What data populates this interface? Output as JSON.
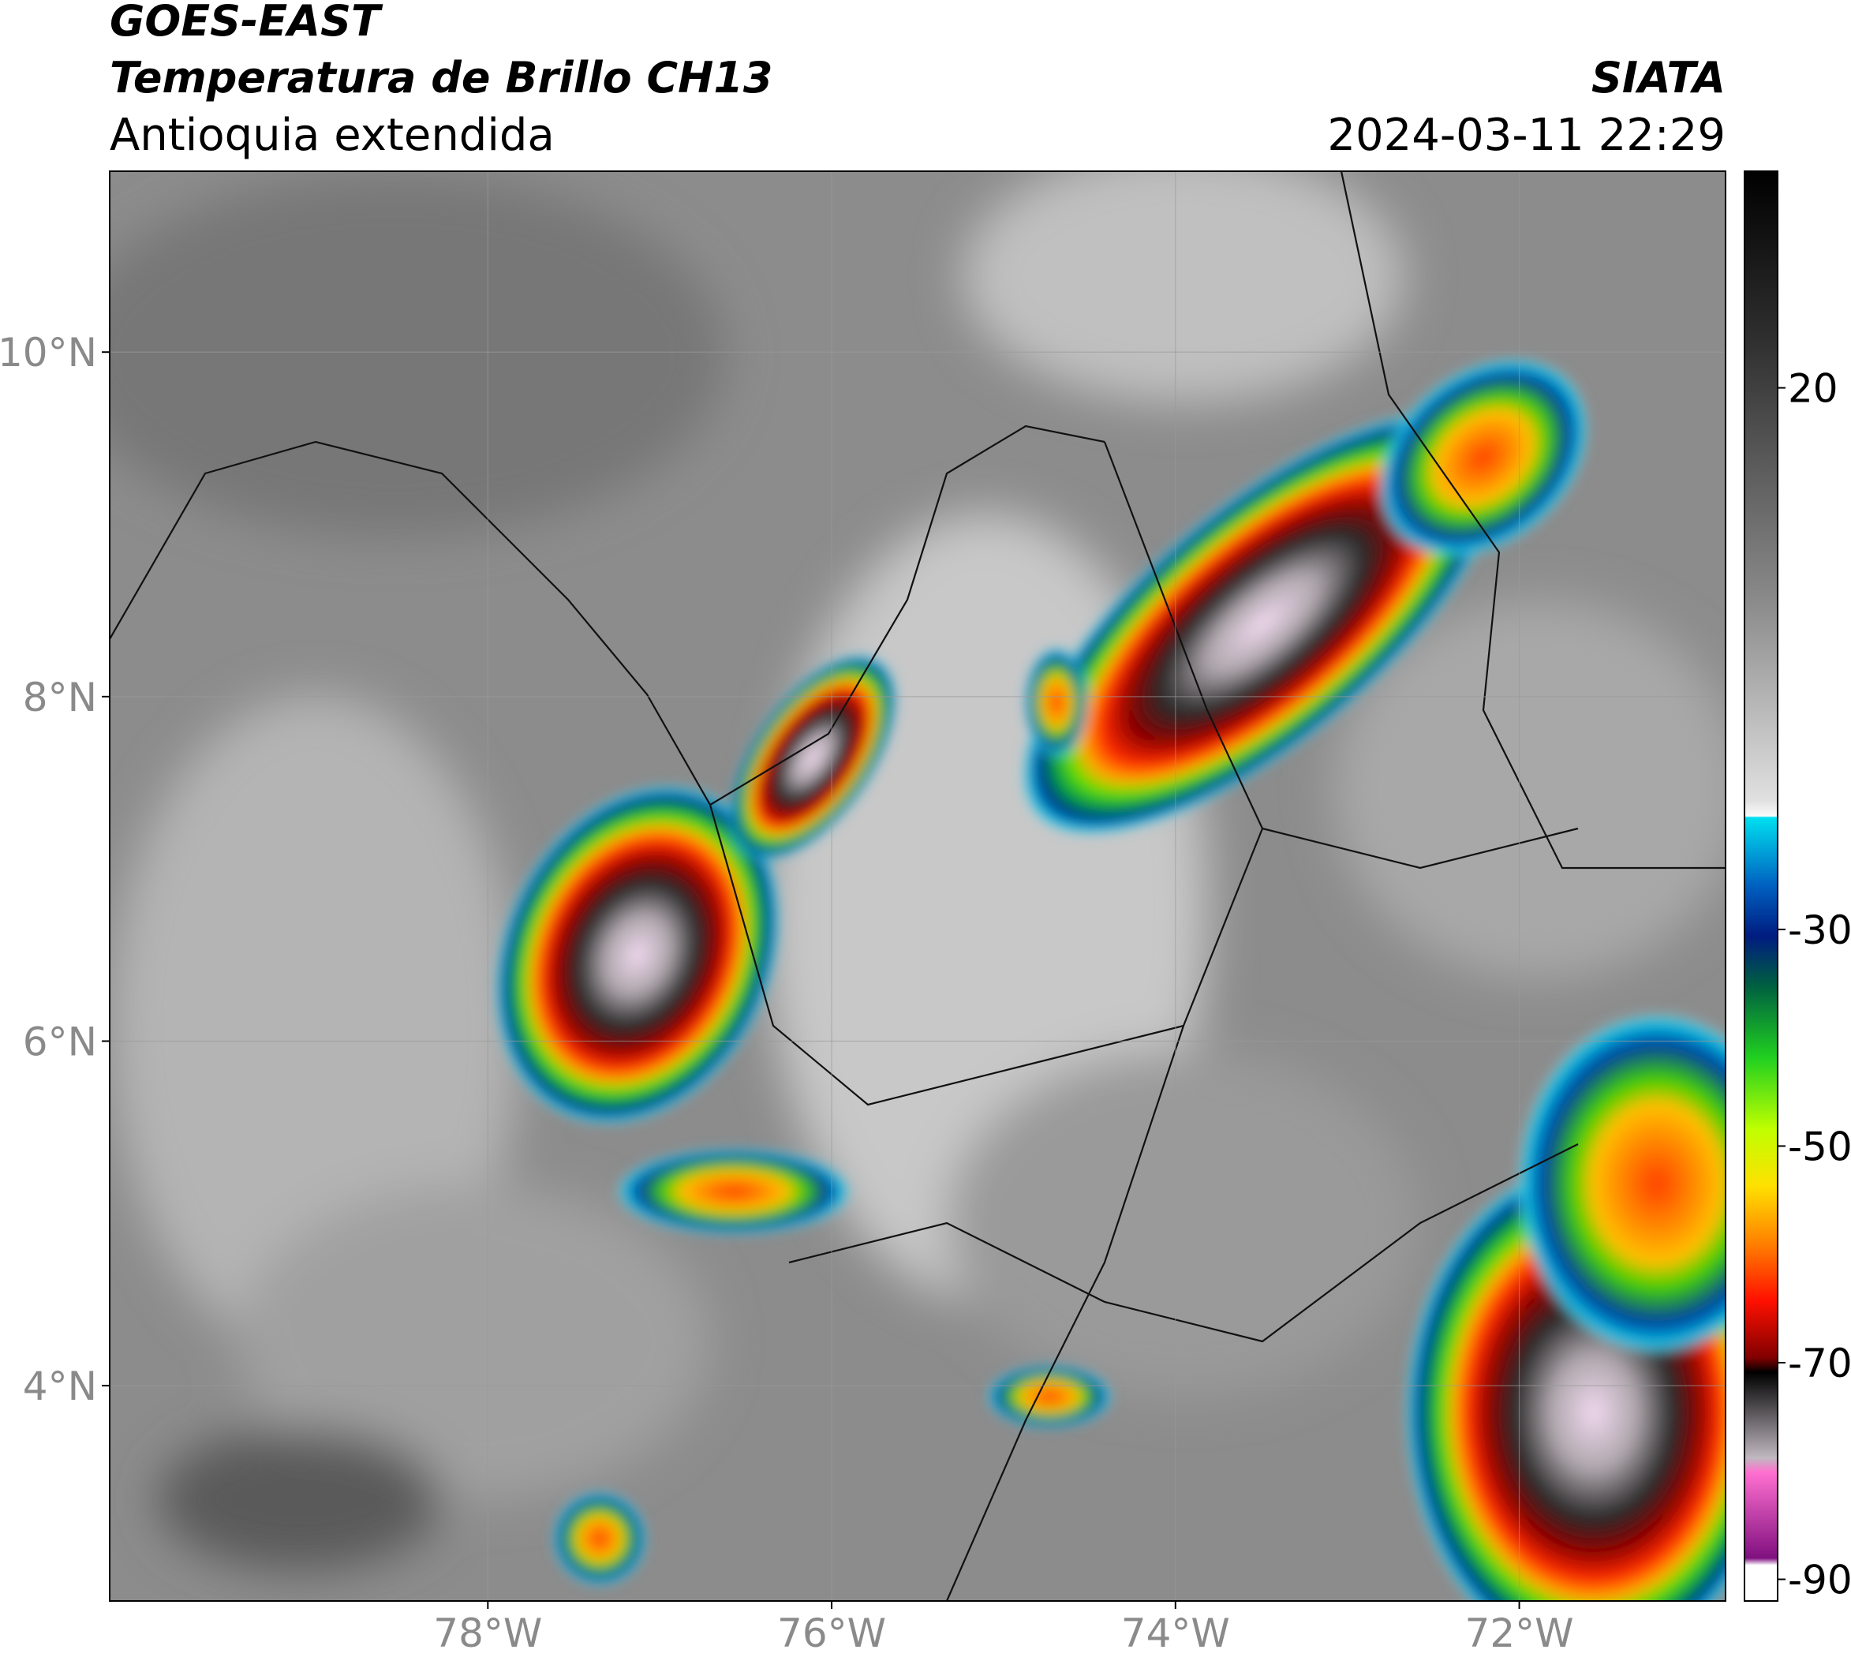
{
  "header": {
    "title": "GOES-EAST",
    "subtitle": "Temperatura de Brillo CH13",
    "region": "Antioquia extendida",
    "source": "SIATA",
    "datetime": "2024-03-11 22:29"
  },
  "map": {
    "xlim": [
      -80.2,
      -70.8
    ],
    "ylim": [
      2.75,
      11.05
    ],
    "xticks": [
      {
        "value": -78,
        "label": "78°W"
      },
      {
        "value": -76,
        "label": "76°W"
      },
      {
        "value": -74,
        "label": "74°W"
      },
      {
        "value": -72,
        "label": "72°W"
      }
    ],
    "yticks": [
      {
        "value": 10,
        "label": "10°N"
      },
      {
        "value": 8,
        "label": "8°N"
      },
      {
        "value": 6,
        "label": "6°N"
      },
      {
        "value": 4,
        "label": "4°N"
      }
    ],
    "grid": true
  },
  "colorbar": {
    "lim": [
      -92,
      40
    ],
    "ticks": [
      20,
      -30,
      -50,
      -70,
      -90
    ]
  }
}
